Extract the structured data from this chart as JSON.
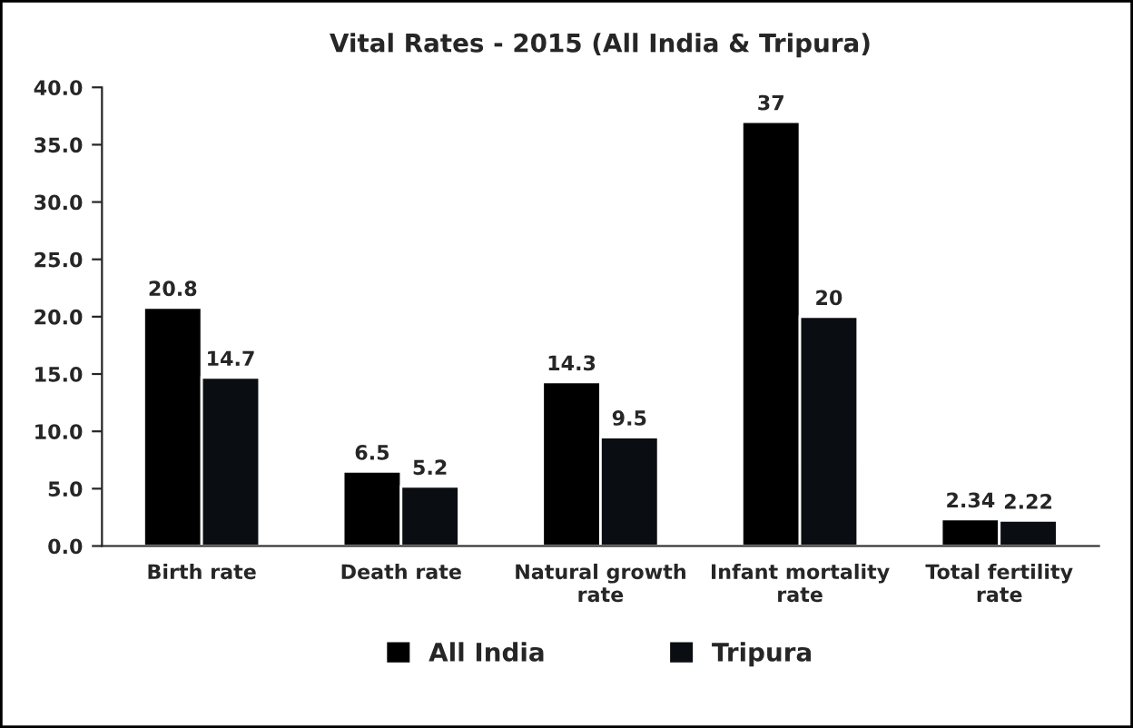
{
  "chart_data": {
    "type": "bar",
    "title": "Vital Rates - 2015 (All India & Tripura)",
    "categories": [
      "Birth rate",
      "Death rate",
      "Natural growth rate",
      "Infant mortality rate",
      "Total fertility rate"
    ],
    "series": [
      {
        "name": "All India",
        "color": "#000000",
        "values": [
          20.8,
          6.5,
          14.3,
          37,
          2.34
        ],
        "value_labels": [
          "20.8",
          "6.5",
          "14.3",
          "37",
          "2.34"
        ]
      },
      {
        "name": "Tripura",
        "color": "#0a0e12",
        "values": [
          14.7,
          5.2,
          9.5,
          20,
          2.22
        ],
        "value_labels": [
          "14.7",
          "5.2",
          "9.5",
          "20",
          "2.22"
        ]
      }
    ],
    "ylim": [
      0,
      40
    ],
    "yticks": [
      {
        "value": 0,
        "label": "0.0"
      },
      {
        "value": 5,
        "label": "5.0"
      },
      {
        "value": 10,
        "label": "10.0"
      },
      {
        "value": 15,
        "label": "15.0"
      },
      {
        "value": 20,
        "label": "20.0"
      },
      {
        "value": 25,
        "label": "25.0"
      },
      {
        "value": 30,
        "label": "30.0"
      },
      {
        "value": 35,
        "label": "35.0"
      },
      {
        "value": 40,
        "label": "40.0"
      }
    ],
    "grid": false,
    "legend": "bottom"
  }
}
